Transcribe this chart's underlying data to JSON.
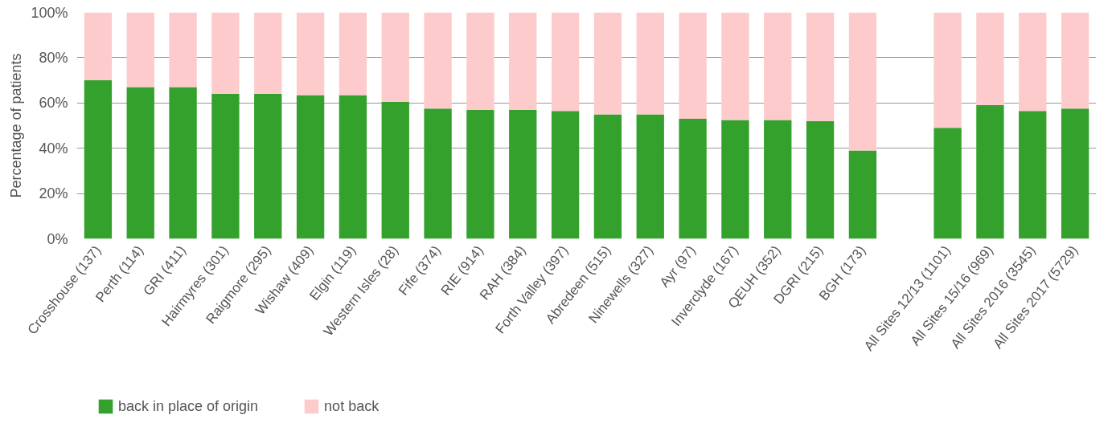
{
  "chart_data": {
    "type": "bar",
    "stacked": true,
    "ylabel": "Percentage of patients",
    "categories": [
      "Crosshouse (137)",
      "Perth (114)",
      "GRI (411)",
      "Hairmyres (301)",
      "Raigmore (295)",
      "Wishaw (409)",
      "Elgin (119)",
      "Western Isles (28)",
      "Fife (374)",
      "RIE (914)",
      "RAH (384)",
      "Forth Valley (397)",
      "Abredeen (515)",
      "Ninewells (327)",
      "Ayr (97)",
      "Inverclyde (167)",
      "QEUH (352)",
      "DGRI (215)",
      "BGH (173)",
      null,
      "All Sites 12/13 (1101)",
      "All Sites 15/16 (969)",
      "All Sites 2016 (3545)",
      "All Sites 2017 (5729)"
    ],
    "series": [
      {
        "name": "back in place of origin",
        "color": "#34a12d",
        "values": [
          70,
          67,
          67,
          64,
          64,
          63.5,
          63.5,
          60.5,
          57.5,
          57,
          57,
          56.5,
          55,
          55,
          53,
          52.5,
          52.5,
          52,
          39,
          null,
          49,
          59,
          56.5,
          57.5
        ]
      },
      {
        "name": "not back",
        "color": "#fdcbcb",
        "values": [
          30,
          33,
          33,
          36,
          36,
          36.5,
          36.5,
          39.5,
          42.5,
          43,
          43,
          43.5,
          45,
          45,
          47,
          47.5,
          47.5,
          48,
          61,
          null,
          51,
          41,
          43.5,
          42.5
        ]
      }
    ],
    "ylim": [
      0,
      100
    ],
    "yticks": [
      {
        "value": 0,
        "label": "0%"
      },
      {
        "value": 20,
        "label": "20%"
      },
      {
        "value": 40,
        "label": "40%"
      },
      {
        "value": 60,
        "label": "60%"
      },
      {
        "value": 80,
        "label": "80%"
      },
      {
        "value": 100,
        "label": "100%"
      }
    ],
    "grid": "y",
    "legend": "bottom left"
  }
}
